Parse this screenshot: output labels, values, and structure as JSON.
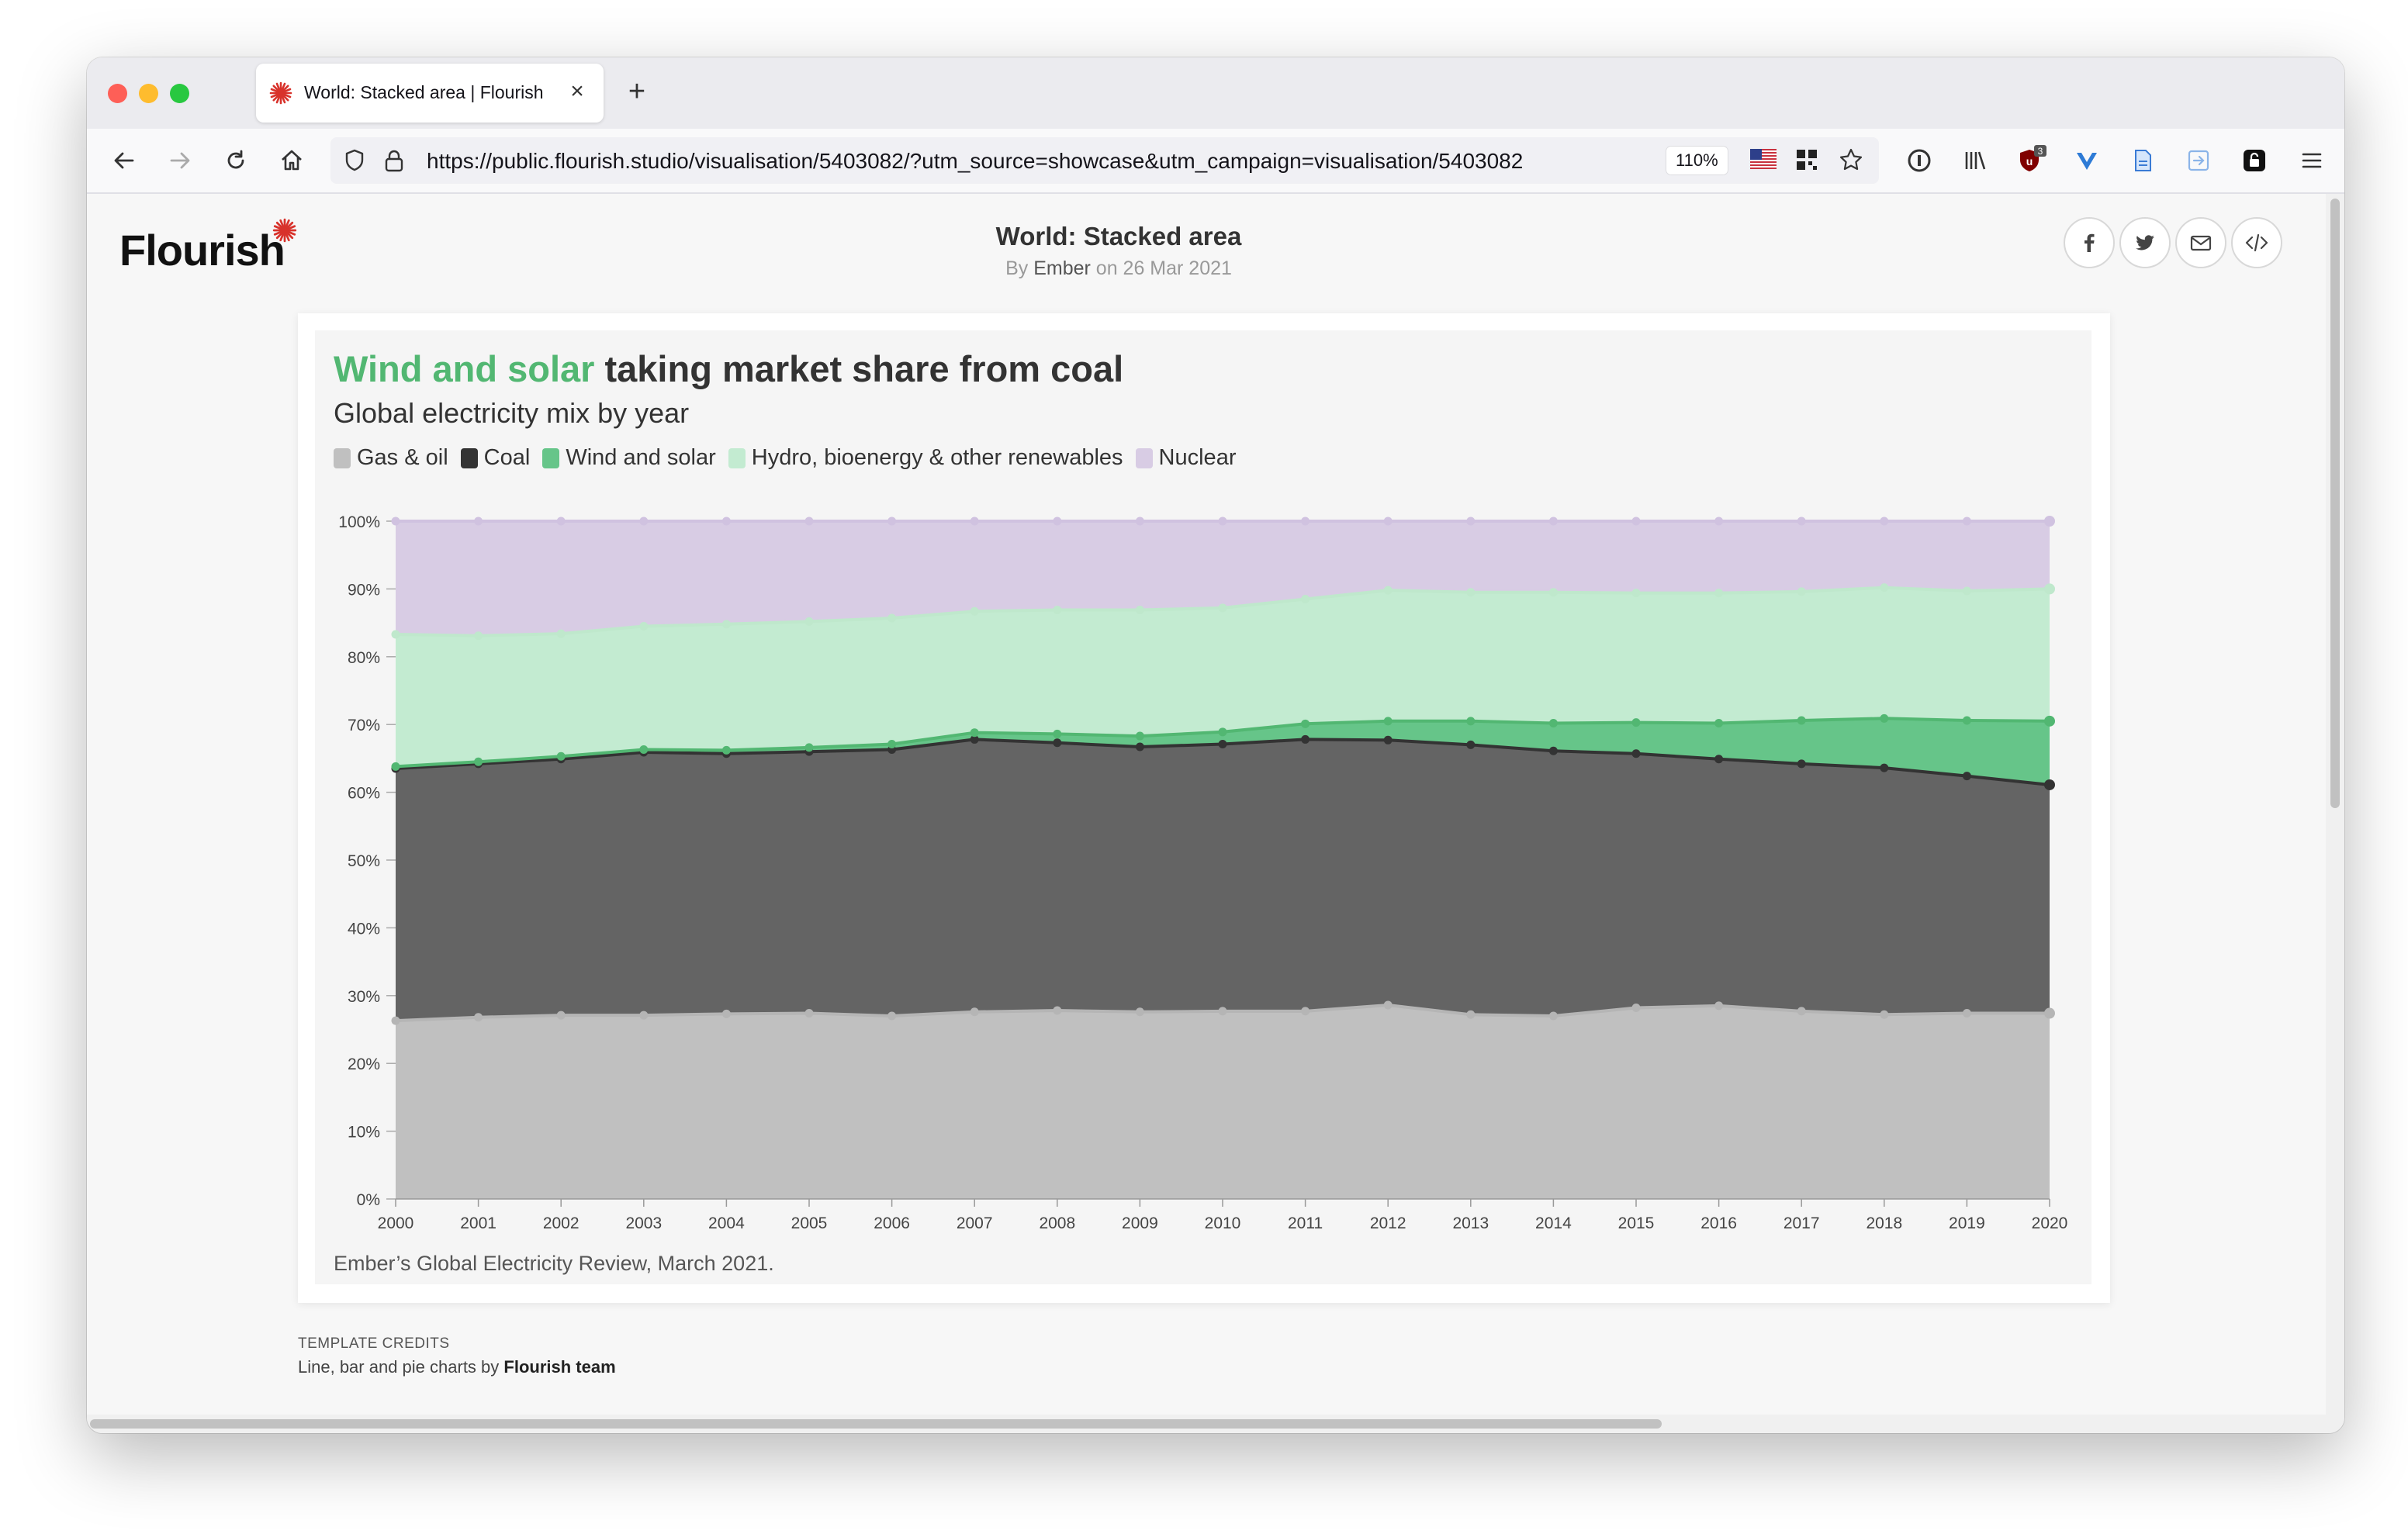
{
  "browser": {
    "tab_title": "World: Stacked area | Flourish",
    "tab_close": "×",
    "new_tab": "+",
    "url": "https://public.flourish.studio/visualisation/5403082/?utm_source=showcase&utm_campaign=visualisation/5403082",
    "zoom": "110%",
    "extension_badge": "3"
  },
  "page": {
    "logo": "Flourish",
    "title": "World: Stacked area",
    "byline_prefix": "By ",
    "author": "Ember",
    "byline_suffix": " on 26 Mar 2021",
    "template_credits_label": "TEMPLATE CREDITS",
    "credits_prefix": "Line, bar and pie charts by ",
    "credits_team": "Flourish team"
  },
  "chart_data": {
    "type": "area",
    "stacked": true,
    "title_highlight": "Wind and solar",
    "title_rest": " taking market share from coal",
    "subtitle": "Global electricity mix by year",
    "source": "Ember’s Global Electricity Review, March 2021.",
    "x": [
      "2000",
      "2001",
      "2002",
      "2003",
      "2004",
      "2005",
      "2006",
      "2007",
      "2008",
      "2009",
      "2010",
      "2011",
      "2012",
      "2013",
      "2014",
      "2015",
      "2016",
      "2017",
      "2018",
      "2019",
      "2020"
    ],
    "ylim": [
      0,
      100
    ],
    "y_ticks": [
      "0%",
      "10%",
      "20%",
      "30%",
      "40%",
      "50%",
      "60%",
      "70%",
      "80%",
      "90%",
      "100%"
    ],
    "legend_position": "top-left",
    "series": [
      {
        "name": "Gas & oil",
        "color": "#c0c0c0",
        "line": "#b5b5b5",
        "values": [
          26.3,
          26.8,
          27.1,
          27.1,
          27.3,
          27.4,
          27.0,
          27.6,
          27.8,
          27.6,
          27.7,
          27.7,
          28.6,
          27.2,
          27.0,
          28.2,
          28.5,
          27.7,
          27.2,
          27.4,
          27.4
        ]
      },
      {
        "name": "Coal",
        "color": "#646464",
        "line": "#333333",
        "values": [
          37.2,
          37.4,
          37.8,
          38.8,
          38.4,
          38.6,
          39.3,
          40.2,
          39.5,
          39.1,
          39.4,
          40.1,
          39.1,
          39.8,
          39.1,
          37.5,
          36.4,
          36.5,
          36.4,
          35.0,
          33.7
        ]
      },
      {
        "name": "Wind and solar",
        "color": "#66c589",
        "line": "#52b772",
        "values": [
          0.3,
          0.3,
          0.4,
          0.4,
          0.5,
          0.6,
          0.8,
          1.0,
          1.3,
          1.6,
          1.8,
          2.3,
          2.8,
          3.5,
          4.1,
          4.6,
          5.3,
          6.4,
          7.3,
          8.2,
          9.4
        ]
      },
      {
        "name": "Hydro, bioenergy & other renewables",
        "color": "#c3ebd1",
        "line": "#bfe8cc",
        "values": [
          19.5,
          18.6,
          18.1,
          18.2,
          18.6,
          18.6,
          18.6,
          17.9,
          18.3,
          18.6,
          18.3,
          18.4,
          19.3,
          19.0,
          19.3,
          19.1,
          19.2,
          19.0,
          19.3,
          19.1,
          19.5
        ]
      },
      {
        "name": "Nuclear",
        "color": "#d8cce4",
        "line": "#d0c2e0",
        "values": [
          16.7,
          16.9,
          16.6,
          15.5,
          15.2,
          14.8,
          14.3,
          13.3,
          13.1,
          13.1,
          12.8,
          11.5,
          10.2,
          10.5,
          10.5,
          10.6,
          10.6,
          10.4,
          9.8,
          10.3,
          10.0
        ]
      }
    ]
  }
}
